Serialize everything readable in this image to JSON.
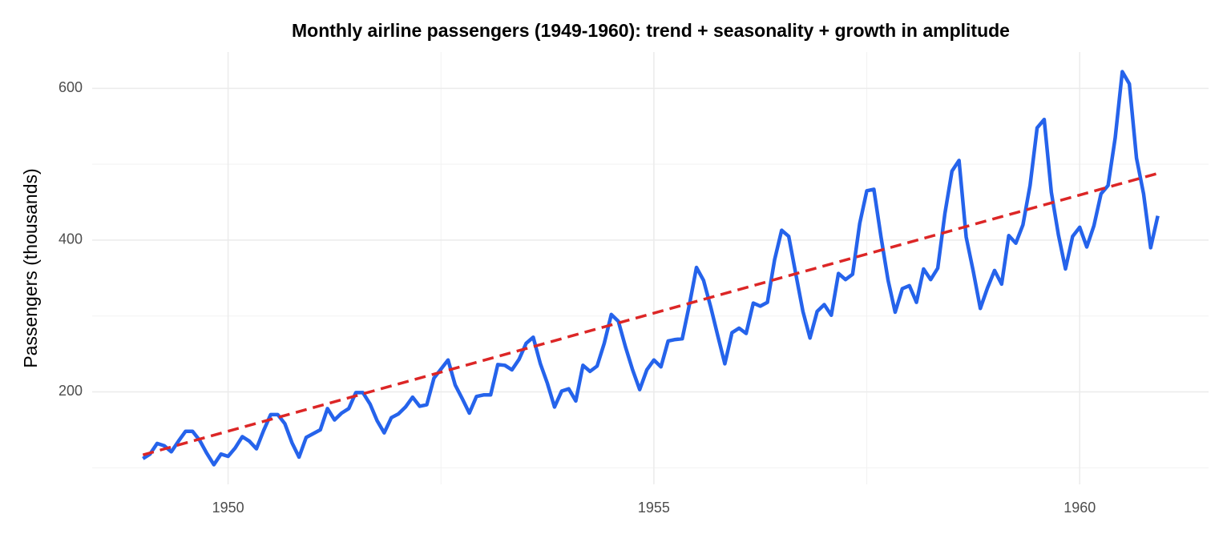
{
  "chart_data": {
    "type": "line",
    "title": "Monthly airline passengers (1949-1960): trend + seasonality + growth in amplitude",
    "y_label": "Passengers (thousands)",
    "xlim": [
      1948.404,
      1961.513
    ],
    "ylim": [
      78.1,
      647.9
    ],
    "xticks": [
      1950,
      1955,
      1960
    ],
    "yticks": [
      200,
      400,
      600
    ],
    "grid": true,
    "series": [
      {
        "name": "Passengers",
        "color": "#2563eb",
        "dashed": false,
        "x": [
          1949,
          1949.083,
          1949.167,
          1949.25,
          1949.333,
          1949.417,
          1949.5,
          1949.583,
          1949.667,
          1949.75,
          1949.833,
          1949.917,
          1950,
          1950.083,
          1950.167,
          1950.25,
          1950.333,
          1950.417,
          1950.5,
          1950.583,
          1950.667,
          1950.75,
          1950.833,
          1950.917,
          1951,
          1951.083,
          1951.167,
          1951.25,
          1951.333,
          1951.417,
          1951.5,
          1951.583,
          1951.667,
          1951.75,
          1951.833,
          1951.917,
          1952,
          1952.083,
          1952.167,
          1952.25,
          1952.333,
          1952.417,
          1952.5,
          1952.583,
          1952.667,
          1952.75,
          1952.833,
          1952.917,
          1953,
          1953.083,
          1953.167,
          1953.25,
          1953.333,
          1953.417,
          1953.5,
          1953.583,
          1953.667,
          1953.75,
          1953.833,
          1953.917,
          1954,
          1954.083,
          1954.167,
          1954.25,
          1954.333,
          1954.417,
          1954.5,
          1954.583,
          1954.667,
          1954.75,
          1954.833,
          1954.917,
          1955,
          1955.083,
          1955.167,
          1955.25,
          1955.333,
          1955.417,
          1955.5,
          1955.583,
          1955.667,
          1955.75,
          1955.833,
          1955.917,
          1956,
          1956.083,
          1956.167,
          1956.25,
          1956.333,
          1956.417,
          1956.5,
          1956.583,
          1956.667,
          1956.75,
          1956.833,
          1956.917,
          1957,
          1957.083,
          1957.167,
          1957.25,
          1957.333,
          1957.417,
          1957.5,
          1957.583,
          1957.667,
          1957.75,
          1957.833,
          1957.917,
          1958,
          1958.083,
          1958.167,
          1958.25,
          1958.333,
          1958.417,
          1958.5,
          1958.583,
          1958.667,
          1958.75,
          1958.833,
          1958.917,
          1959,
          1959.083,
          1959.167,
          1959.25,
          1959.333,
          1959.417,
          1959.5,
          1959.583,
          1959.667,
          1959.75,
          1959.833,
          1959.917,
          1960,
          1960.083,
          1960.167,
          1960.25,
          1960.333,
          1960.417,
          1960.5,
          1960.583,
          1960.667,
          1960.75,
          1960.833,
          1960.917
        ],
        "values": [
          112,
          118,
          132,
          129,
          121,
          135,
          148,
          148,
          136,
          119,
          104,
          118,
          115,
          126,
          141,
          135,
          125,
          149,
          170,
          170,
          158,
          133,
          114,
          140,
          145,
          150,
          178,
          163,
          172,
          178,
          199,
          199,
          184,
          162,
          146,
          166,
          171,
          180,
          193,
          181,
          183,
          218,
          230,
          242,
          209,
          191,
          172,
          194,
          196,
          196,
          236,
          235,
          229,
          243,
          264,
          272,
          237,
          211,
          180,
          201,
          204,
          188,
          235,
          227,
          234,
          264,
          302,
          293,
          259,
          229,
          203,
          229,
          242,
          233,
          267,
          269,
          270,
          315,
          364,
          347,
          312,
          274,
          237,
          278,
          284,
          277,
          317,
          313,
          318,
          374,
          413,
          405,
          355,
          306,
          271,
          306,
          315,
          301,
          356,
          348,
          355,
          422,
          465,
          467,
          404,
          347,
          305,
          336,
          340,
          318,
          362,
          348,
          363,
          435,
          491,
          505,
          404,
          359,
          310,
          337,
          360,
          342,
          406,
          396,
          420,
          472,
          548,
          559,
          463,
          407,
          362,
          405,
          417,
          391,
          419,
          461,
          472,
          535,
          622,
          606,
          508,
          461,
          390,
          432
        ]
      },
      {
        "name": "Trend",
        "color": "#dc2626",
        "dashed": true,
        "x": [
          1949,
          1960.917
        ],
        "values": [
          117,
          488
        ]
      }
    ]
  }
}
